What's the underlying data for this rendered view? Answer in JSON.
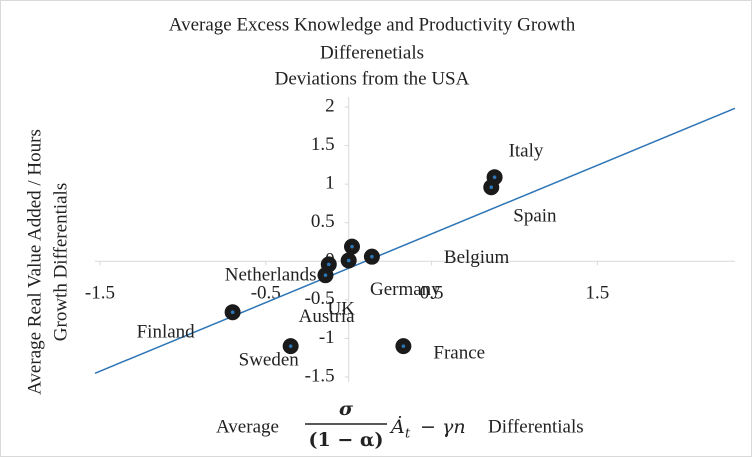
{
  "chart_data": {
    "type": "scatter",
    "title": [
      "Average Excess Knowledge and Productivity Growth",
      "Differenetials",
      "Deviations from the USA"
    ],
    "y_label": [
      "Average Real Value Added / Hours",
      "Growth Differentials"
    ],
    "x_label": {
      "prefix": "Average",
      "numerator": "σ",
      "denominator": "(1 − α)",
      "term": "Ȧ",
      "subscript": "t",
      "rest": "− γn",
      "suffix": "Differentials"
    },
    "points": [
      "Italy",
      "Spain",
      "Belgium",
      "Germany",
      "Austria",
      "Netherlands",
      "UK",
      "Finland",
      "Sweden",
      "France"
    ],
    "x": [
      0.88,
      0.86,
      0.14,
      0.02,
      0.0,
      -0.12,
      -0.14,
      -0.7,
      -0.35,
      0.33
    ],
    "values": [
      1.09,
      0.96,
      0.06,
      0.19,
      0.01,
      -0.04,
      -0.18,
      -0.66,
      -1.1,
      -1.1
    ],
    "color": "#1a1a1a",
    "trendline": {
      "slope": 0.89,
      "intercept": -0.09,
      "color": "#2e75b6"
    },
    "xlim": [
      -1.53,
      2.33
    ],
    "ylim": [
      -1.5,
      2
    ],
    "xticks": [
      -1.5,
      -0.5,
      0.5,
      1.5
    ],
    "yticks": [
      -1.5,
      -1,
      -0.5,
      0,
      0.5,
      1,
      1.5,
      2
    ]
  }
}
